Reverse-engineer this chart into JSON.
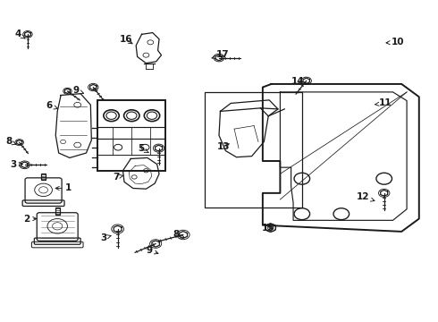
{
  "background_color": "#ffffff",
  "line_color": "#1a1a1a",
  "fig_width": 4.9,
  "fig_height": 3.6,
  "dpi": 100,
  "label_positions": {
    "1": [
      0.155,
      0.415,
      0.118,
      0.415
    ],
    "2": [
      0.06,
      0.32,
      0.09,
      0.32
    ],
    "3a": [
      0.03,
      0.49,
      0.058,
      0.49
    ],
    "3b": [
      0.235,
      0.26,
      0.26,
      0.27
    ],
    "4": [
      0.04,
      0.895,
      0.062,
      0.877
    ],
    "5": [
      0.322,
      0.538,
      0.345,
      0.522
    ],
    "6": [
      0.112,
      0.672,
      0.138,
      0.66
    ],
    "7": [
      0.265,
      0.45,
      0.282,
      0.455
    ],
    "8a": [
      0.02,
      0.56,
      0.042,
      0.548
    ],
    "8b": [
      0.402,
      0.27,
      0.428,
      0.258
    ],
    "9a": [
      0.172,
      0.72,
      0.192,
      0.71
    ],
    "9b": [
      0.34,
      0.222,
      0.368,
      0.208
    ],
    "10": [
      0.91,
      0.87,
      0.875,
      0.868
    ],
    "11": [
      0.88,
      0.68,
      0.85,
      0.675
    ],
    "12": [
      0.83,
      0.388,
      0.858,
      0.375
    ],
    "13": [
      0.51,
      0.545,
      0.53,
      0.558
    ],
    "14": [
      0.68,
      0.748,
      0.695,
      0.732
    ],
    "15": [
      0.612,
      0.29,
      0.628,
      0.29
    ],
    "16": [
      0.288,
      0.878,
      0.308,
      0.86
    ],
    "17": [
      0.508,
      0.832,
      0.482,
      0.82
    ]
  }
}
